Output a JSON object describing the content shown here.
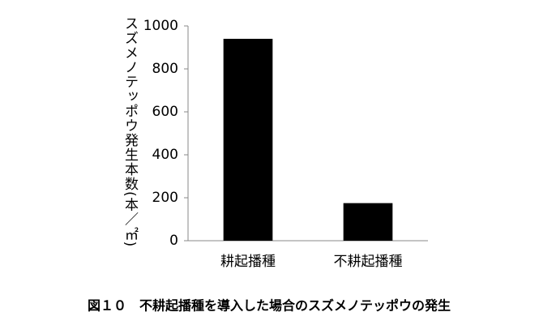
{
  "chart_data": {
    "type": "bar",
    "y_label": "スズメノテッポウ発生本数(本／㎡)",
    "caption": "図１０　不耕起播種を導入した場合のスズメノテッポウの発生",
    "categories": [
      "耕起播種",
      "不耕起播種"
    ],
    "values": [
      940,
      175
    ],
    "color": "#000000",
    "ylim": [
      0,
      1000
    ],
    "yticks": [
      0,
      200,
      400,
      600,
      800,
      1000
    ],
    "grid": false
  }
}
